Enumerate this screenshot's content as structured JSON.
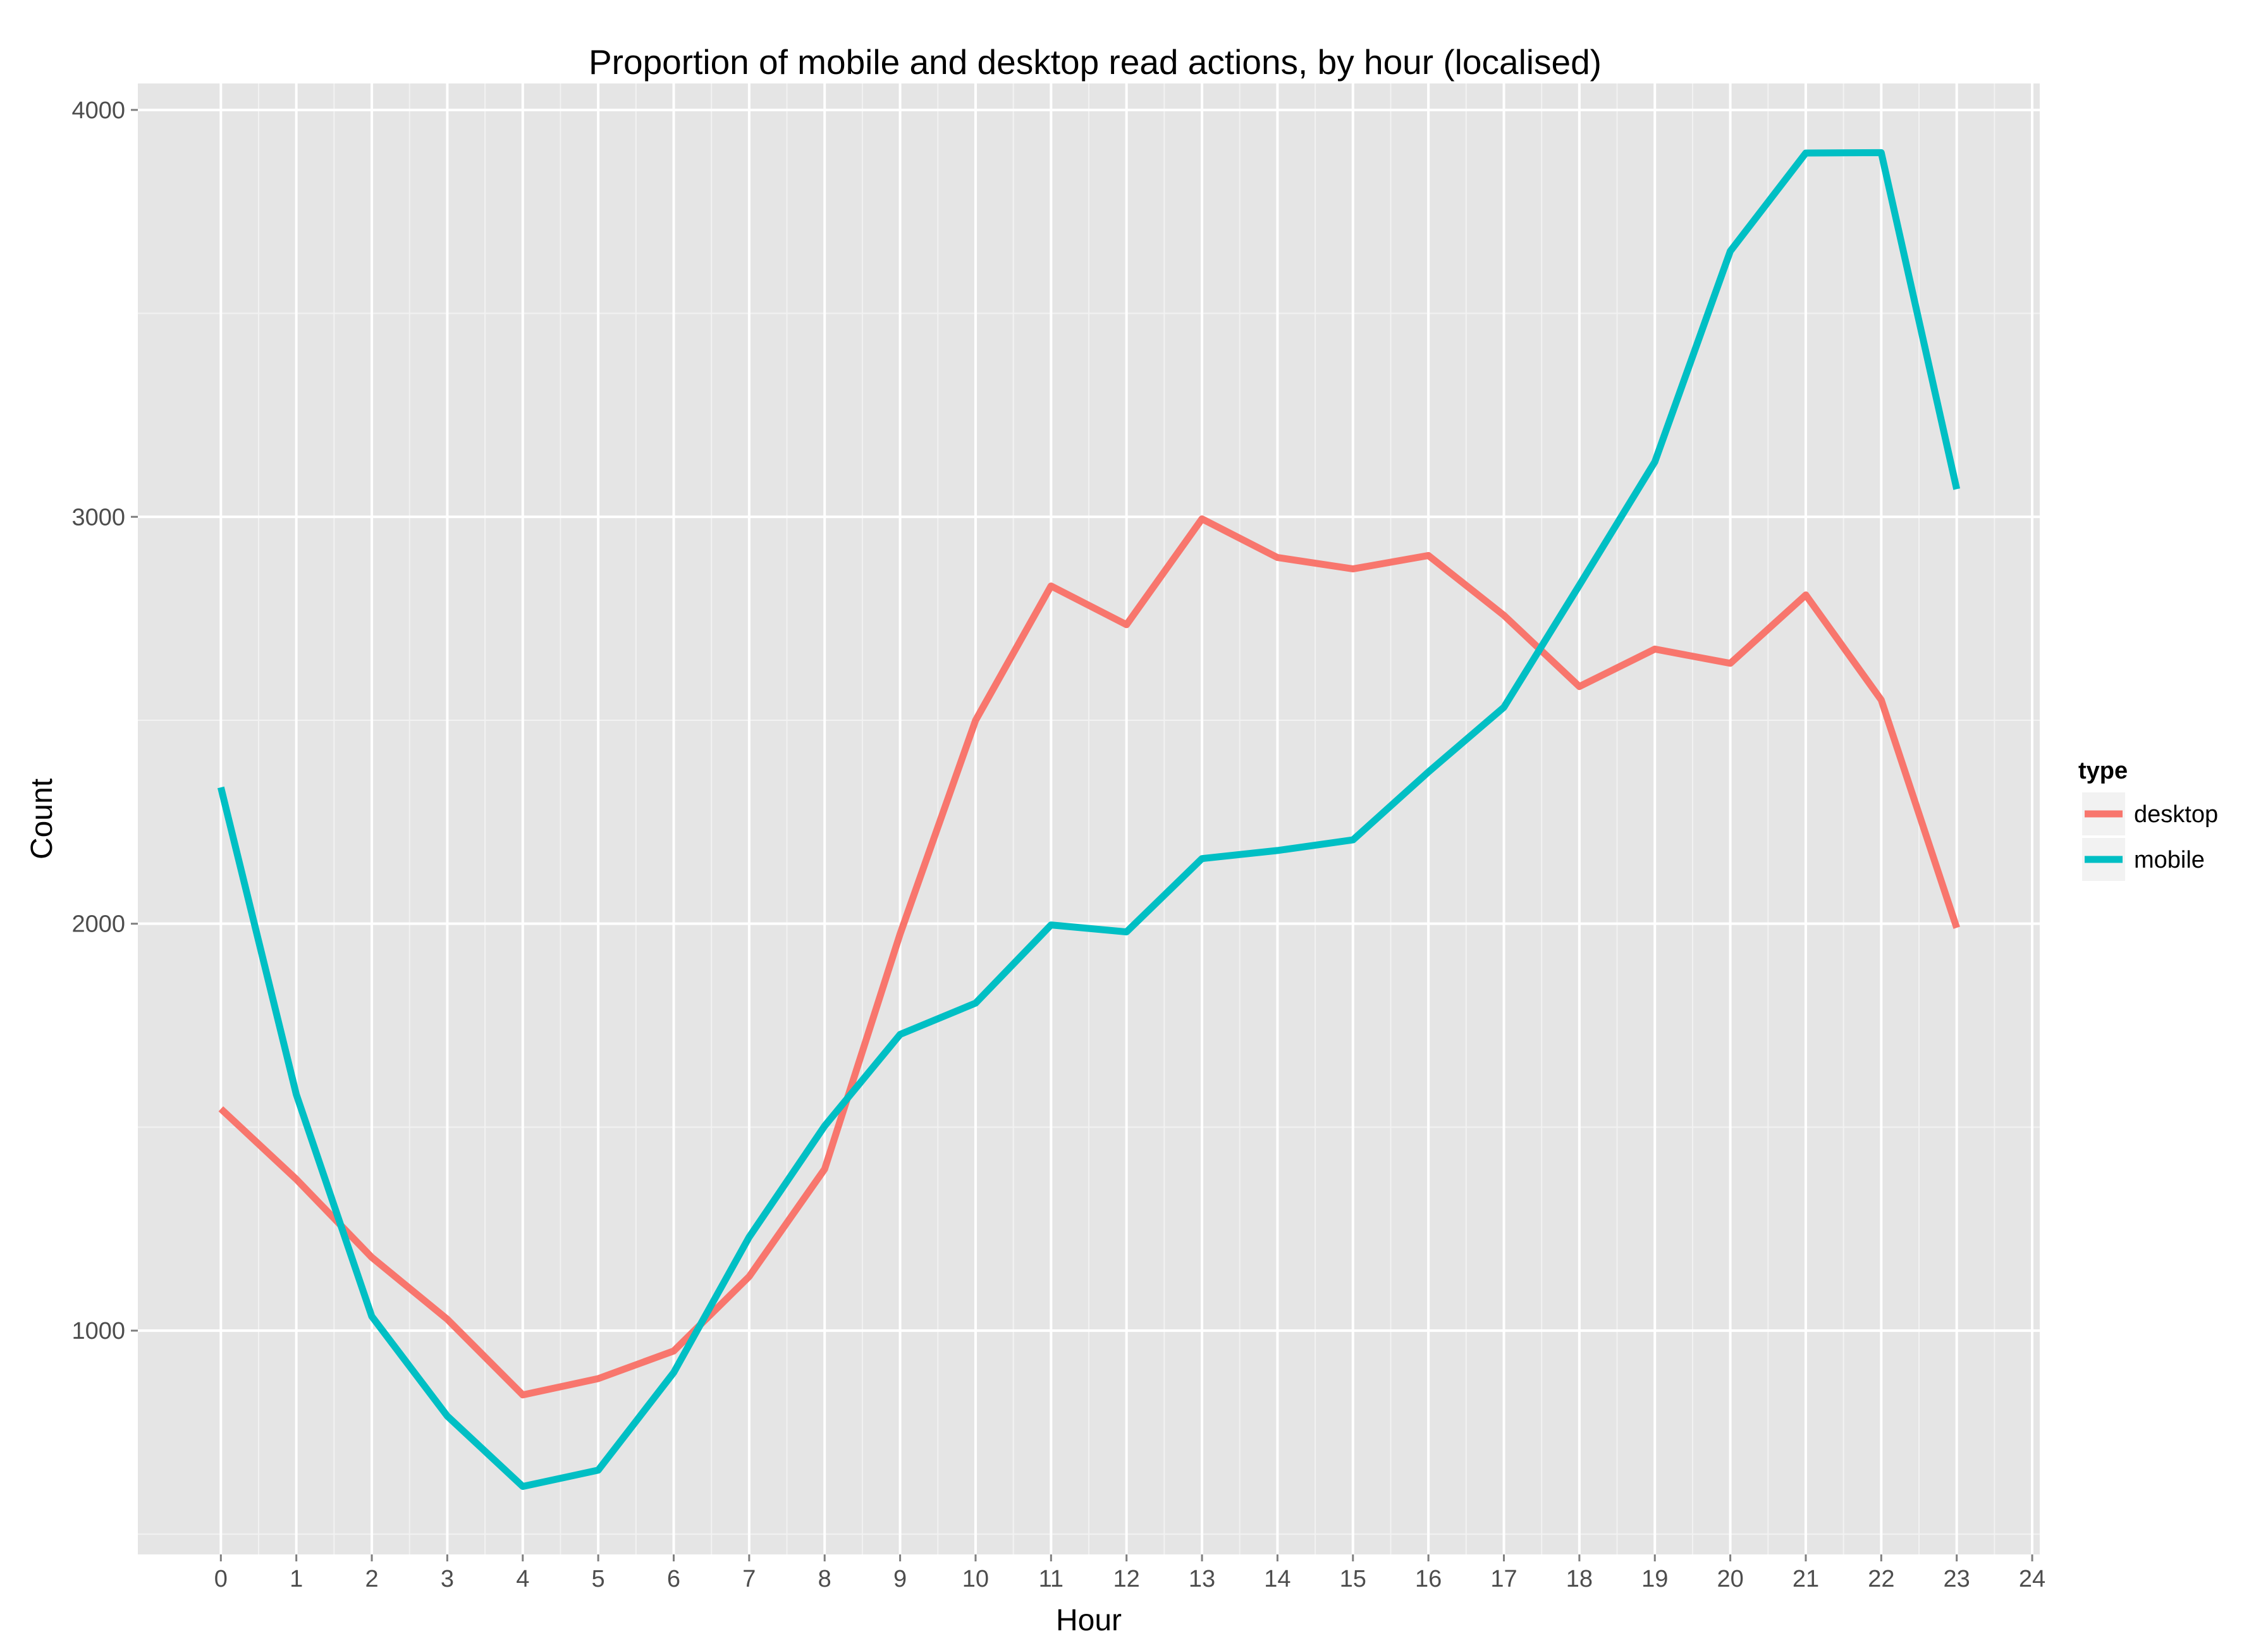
{
  "chart_data": {
    "type": "line",
    "title": "Proportion of mobile and desktop read actions, by hour (localised)",
    "xlabel": "Hour",
    "ylabel": "Count",
    "xlim": [
      -1.1,
      24.1
    ],
    "ylim": [
      450,
      4065
    ],
    "x_ticks": [
      0,
      1,
      2,
      3,
      4,
      5,
      6,
      7,
      8,
      9,
      10,
      11,
      12,
      13,
      14,
      15,
      16,
      17,
      18,
      19,
      20,
      21,
      22,
      23,
      24
    ],
    "y_ticks": [
      1000,
      2000,
      3000,
      4000
    ],
    "grid": true,
    "legend": {
      "title": "type",
      "position": "right"
    },
    "x": [
      0,
      1,
      2,
      3,
      4,
      5,
      6,
      7,
      8,
      9,
      10,
      11,
      12,
      13,
      14,
      15,
      16,
      17,
      18,
      19,
      20,
      21,
      22,
      23
    ],
    "series": [
      {
        "name": "desktop",
        "color": "#f8766d",
        "values": [
          1545,
          1372,
          1180,
          1028,
          842,
          882,
          950,
          1133,
          1397,
          1975,
          2500,
          2830,
          2735,
          2995,
          2900,
          2872,
          2905,
          2758,
          2583,
          2675,
          2640,
          2808,
          2550,
          1990
        ]
      },
      {
        "name": "mobile",
        "color": "#00bfc4",
        "values": [
          2335,
          1580,
          1035,
          790,
          617,
          657,
          897,
          1230,
          1503,
          1728,
          1805,
          1997,
          1980,
          2160,
          2180,
          2206,
          2373,
          2532,
          2832,
          3135,
          3653,
          3894,
          3895,
          3068
        ]
      }
    ]
  }
}
